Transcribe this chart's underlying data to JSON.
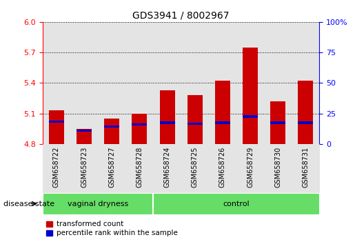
{
  "title": "GDS3941 / 8002967",
  "samples": [
    "GSM658722",
    "GSM658723",
    "GSM658727",
    "GSM658728",
    "GSM658724",
    "GSM658725",
    "GSM658726",
    "GSM658729",
    "GSM658730",
    "GSM658731"
  ],
  "red_values": [
    5.13,
    4.95,
    5.05,
    5.1,
    5.33,
    5.28,
    5.42,
    5.75,
    5.22,
    5.42
  ],
  "blue_values": [
    5.02,
    4.93,
    4.97,
    4.99,
    5.01,
    5.0,
    5.01,
    5.07,
    5.01,
    5.01
  ],
  "ymin": 4.8,
  "ymax": 6.0,
  "yticks_left": [
    4.8,
    5.1,
    5.4,
    5.7,
    6.0
  ],
  "yticks_right": [
    0,
    25,
    50,
    75,
    100
  ],
  "bar_color": "#cc0000",
  "blue_color": "#0000cc",
  "group1_label": "vaginal dryness",
  "group2_label": "control",
  "group1_count": 4,
  "group2_count": 6,
  "group_bg_color": "#66dd66",
  "disease_state_label": "disease state",
  "legend_red": "transformed count",
  "legend_blue": "percentile rank within the sample",
  "bar_width": 0.55,
  "col_bg_color": "#d3d3d3",
  "blue_bar_height": 0.022
}
